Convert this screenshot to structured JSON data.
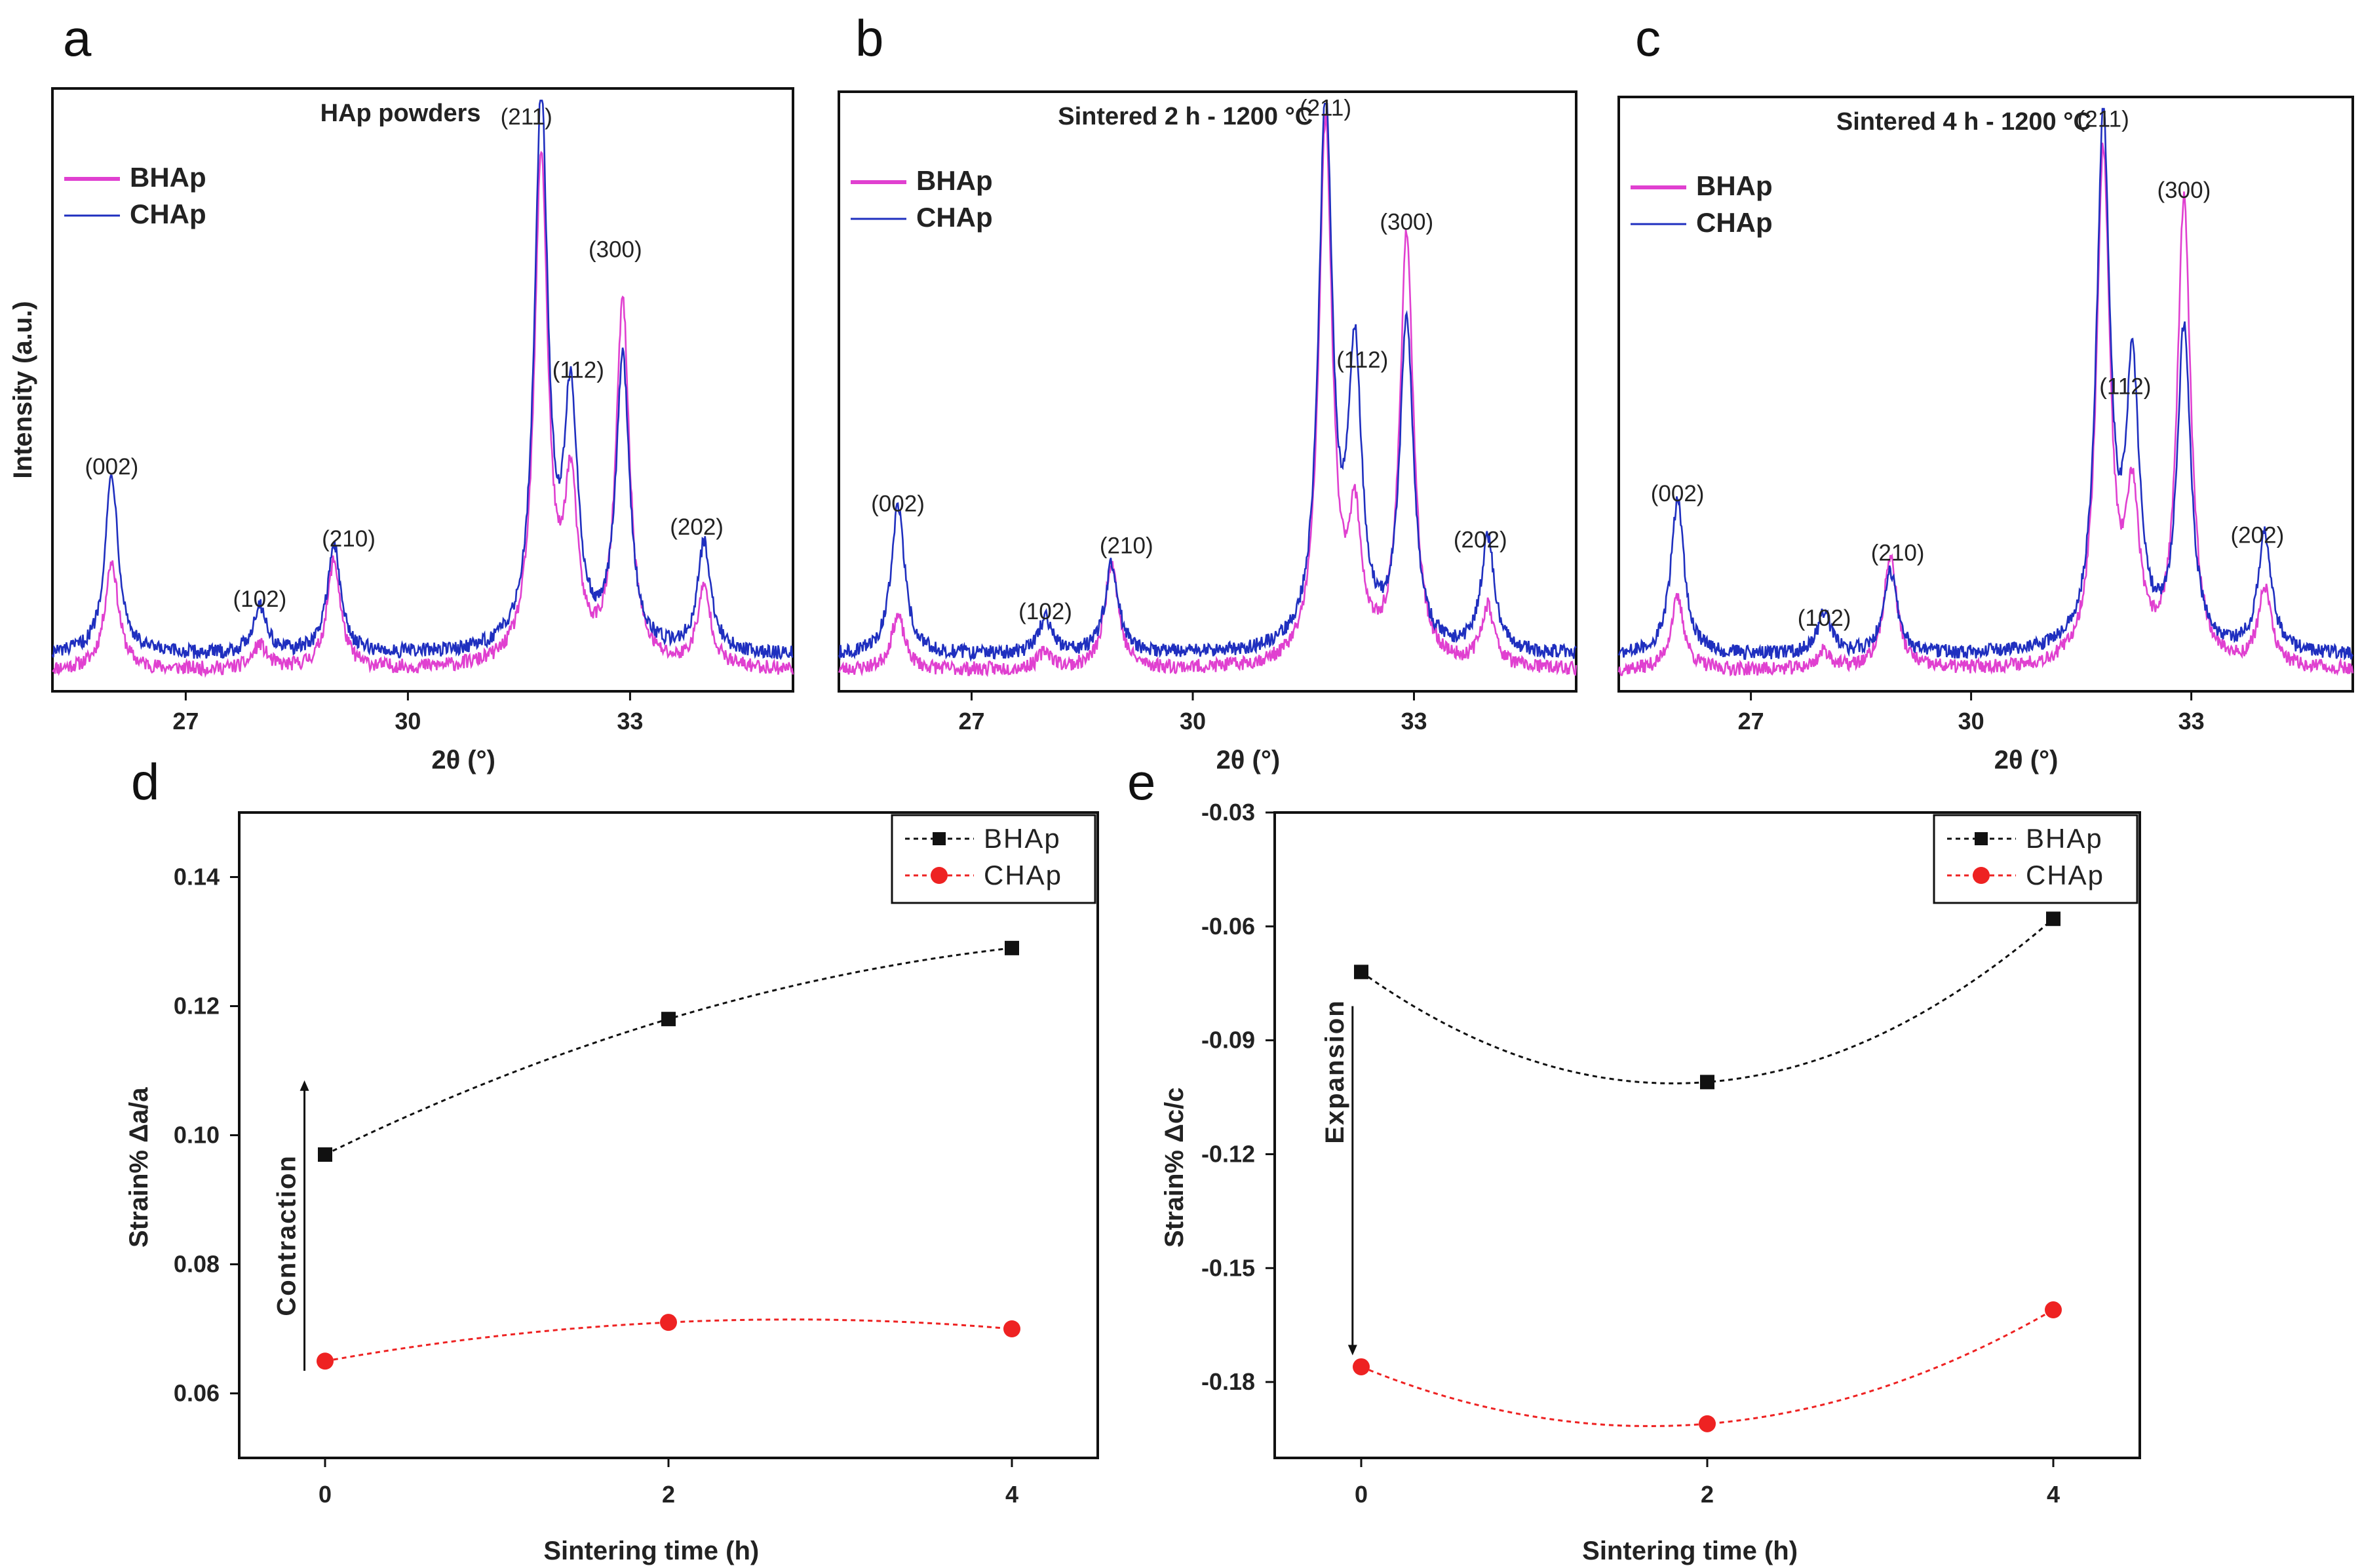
{
  "chart_data": [
    {
      "panel": "a",
      "type": "line",
      "title": "HAp powders",
      "xlabel": "2θ (°)",
      "ylabel": "Intensity (a.u.)",
      "xlim": [
        25.2,
        35.2
      ],
      "ylim": [
        0,
        100
      ],
      "xticks": [
        "27",
        "30",
        "33"
      ],
      "legend": "top-left",
      "colors": {
        "BHAp": "#e040d0",
        "CHAp": "#1f2fbf"
      },
      "series": [
        {
          "name": "BHAp",
          "peaks": [
            [
              26.0,
              18
            ],
            [
              28.0,
              4
            ],
            [
              29.0,
              18
            ],
            [
              31.8,
              84
            ],
            [
              32.2,
              28
            ],
            [
              32.9,
              60
            ],
            [
              34.0,
              13
            ]
          ]
        },
        {
          "name": "CHAp",
          "peaks": [
            [
              26.0,
              30
            ],
            [
              28.0,
              8
            ],
            [
              29.0,
              18
            ],
            [
              31.8,
              91
            ],
            [
              32.2,
              40
            ],
            [
              32.9,
              48
            ],
            [
              34.0,
              18
            ]
          ]
        }
      ],
      "peak_labels": [
        {
          "text": "(002)",
          "x": 26.0,
          "y": 36
        },
        {
          "text": "(102)",
          "x": 28.0,
          "y": 14
        },
        {
          "text": "(210)",
          "x": 29.2,
          "y": 24
        },
        {
          "text": "(211)",
          "x": 31.6,
          "y": 94
        },
        {
          "text": "(112)",
          "x": 32.3,
          "y": 52
        },
        {
          "text": "(300)",
          "x": 32.8,
          "y": 72
        },
        {
          "text": "(202)",
          "x": 33.9,
          "y": 26
        }
      ]
    },
    {
      "panel": "b",
      "type": "line",
      "title": "Sintered 2 h - 1200 °C",
      "xlabel": "2θ (°)",
      "ylabel": "",
      "xlim": [
        25.2,
        35.2
      ],
      "ylim": [
        0,
        100
      ],
      "xticks": [
        "27",
        "30",
        "33"
      ],
      "legend": "top-left",
      "colors": {
        "BHAp": "#e040d0",
        "CHAp": "#1f2fbf"
      },
      "series": [
        {
          "name": "BHAp",
          "peaks": [
            [
              26.0,
              9
            ],
            [
              28.0,
              3
            ],
            [
              28.9,
              18
            ],
            [
              31.8,
              90
            ],
            [
              32.2,
              22
            ],
            [
              32.9,
              72
            ],
            [
              34.0,
              10
            ]
          ]
        },
        {
          "name": "CHAp",
          "peaks": [
            [
              26.0,
              25
            ],
            [
              28.0,
              6
            ],
            [
              28.9,
              15
            ],
            [
              31.8,
              92
            ],
            [
              32.2,
              47
            ],
            [
              32.9,
              55
            ],
            [
              34.0,
              19
            ]
          ]
        }
      ],
      "peak_labels": [
        {
          "text": "(002)",
          "x": 26.0,
          "y": 30
        },
        {
          "text": "(102)",
          "x": 28.0,
          "y": 12
        },
        {
          "text": "(210)",
          "x": 29.1,
          "y": 23
        },
        {
          "text": "(211)",
          "x": 31.8,
          "y": 96
        },
        {
          "text": "(112)",
          "x": 32.3,
          "y": 54
        },
        {
          "text": "(300)",
          "x": 32.9,
          "y": 77
        },
        {
          "text": "(202)",
          "x": 33.9,
          "y": 24
        }
      ]
    },
    {
      "panel": "c",
      "type": "line",
      "title": "Sintered 4 h - 1200 °C",
      "xlabel": "2θ (°)",
      "ylabel": "",
      "xlim": [
        25.2,
        35.2
      ],
      "ylim": [
        0,
        100
      ],
      "xticks": [
        "27",
        "30",
        "33"
      ],
      "legend": "top-left",
      "colors": {
        "BHAp": "#e040d0",
        "CHAp": "#1f2fbf"
      },
      "series": [
        {
          "name": "BHAp",
          "peaks": [
            [
              26.0,
              12
            ],
            [
              28.0,
              3
            ],
            [
              28.9,
              19
            ],
            [
              31.8,
              86
            ],
            [
              32.2,
              26
            ],
            [
              32.9,
              78
            ],
            [
              34.0,
              13
            ]
          ]
        },
        {
          "name": "CHAp",
          "peaks": [
            [
              26.0,
              26
            ],
            [
              28.0,
              7
            ],
            [
              28.9,
              14
            ],
            [
              31.8,
              89
            ],
            [
              32.2,
              45
            ],
            [
              32.9,
              54
            ],
            [
              34.0,
              20
            ]
          ]
        }
      ],
      "peak_labels": [
        {
          "text": "(002)",
          "x": 26.0,
          "y": 32
        },
        {
          "text": "(102)",
          "x": 28.0,
          "y": 11
        },
        {
          "text": "(210)",
          "x": 29.0,
          "y": 22
        },
        {
          "text": "(211)",
          "x": 31.8,
          "y": 95
        },
        {
          "text": "(112)",
          "x": 32.1,
          "y": 50
        },
        {
          "text": "(300)",
          "x": 32.9,
          "y": 83
        },
        {
          "text": "(202)",
          "x": 33.9,
          "y": 25
        }
      ]
    },
    {
      "panel": "d",
      "type": "line",
      "title": "",
      "xlabel": "Sintering time (h)",
      "ylabel": "Strain%  Δa/a",
      "xlim": [
        -0.5,
        4.5
      ],
      "ylim": [
        0.05,
        0.15
      ],
      "xticks": [
        0,
        2,
        4
      ],
      "yticks": [
        0.06,
        0.08,
        0.1,
        0.12,
        0.14
      ],
      "legend": "top-right",
      "annotation": "Contraction",
      "colors": {
        "BHAp": "#111111",
        "CHAp": "#ee2222"
      },
      "x": [
        0,
        2,
        4
      ],
      "series": [
        {
          "name": "BHAp",
          "values": [
            0.097,
            0.118,
            0.129
          ]
        },
        {
          "name": "CHAp",
          "values": [
            0.065,
            0.071,
            0.07
          ]
        }
      ]
    },
    {
      "panel": "e",
      "type": "line",
      "title": "",
      "xlabel": "Sintering time (h)",
      "ylabel": "Strain%  Δc/c",
      "xlim": [
        -0.5,
        4.5
      ],
      "ylim": [
        -0.2,
        -0.03
      ],
      "xticks": [
        0,
        2,
        4
      ],
      "yticks": [
        -0.03,
        -0.06,
        -0.09,
        -0.12,
        -0.15,
        -0.18
      ],
      "legend": "top-right",
      "annotation": "Expansion",
      "colors": {
        "BHAp": "#111111",
        "CHAp": "#ee2222"
      },
      "x": [
        0,
        2,
        4
      ],
      "series": [
        {
          "name": "BHAp",
          "values": [
            -0.072,
            -0.101,
            -0.058
          ]
        },
        {
          "name": "CHAp",
          "values": [
            -0.176,
            -0.191,
            -0.161
          ]
        }
      ]
    }
  ]
}
